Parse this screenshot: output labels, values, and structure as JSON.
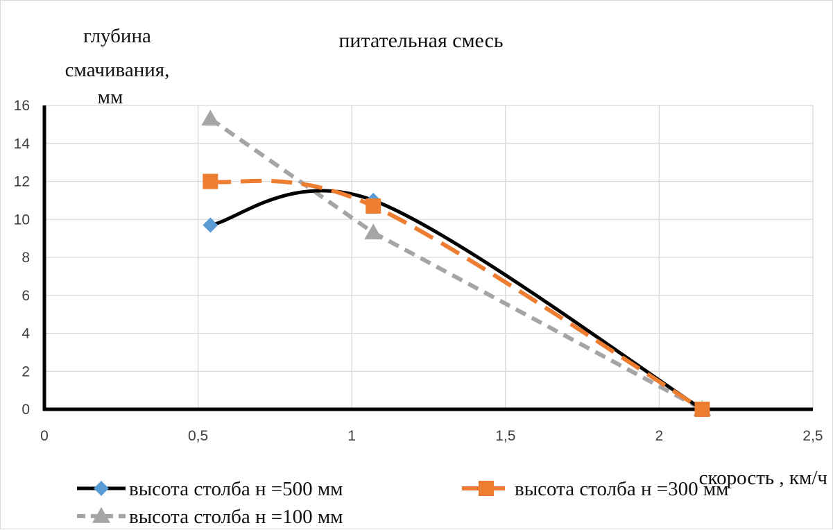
{
  "chart_data": {
    "type": "line",
    "title": "питательная смесь",
    "ylabel_lines": [
      "глубина",
      "смачивания,",
      "мм"
    ],
    "xlabel": "скорость , км/ч",
    "xlim": [
      0,
      2.5
    ],
    "ylim": [
      0,
      16
    ],
    "x_ticks": [
      0,
      0.5,
      1,
      1.5,
      2,
      2.5
    ],
    "x_tick_labels": [
      "0",
      "0,5",
      "1",
      "1,5",
      "2",
      "2,5"
    ],
    "y_ticks": [
      0,
      2,
      4,
      6,
      8,
      10,
      12,
      14,
      16
    ],
    "y_tick_labels": [
      "0",
      "2",
      "4",
      "6",
      "8",
      "10",
      "12",
      "14",
      "16"
    ],
    "grid": true,
    "legend_position": "bottom",
    "series": [
      {
        "name": "высота столба н =500  мм",
        "x": [
          0.54,
          1.07,
          2.14
        ],
        "values": [
          9.7,
          11.0,
          0
        ],
        "color": "#000000",
        "marker_color": "#5b9bd5",
        "marker": "diamond",
        "line_style": "solid",
        "smooth": true
      },
      {
        "name": "высота столба н =300  мм",
        "x": [
          0.54,
          1.07,
          2.14
        ],
        "values": [
          12.0,
          10.7,
          0
        ],
        "color": "#ed7d31",
        "marker_color": "#ed7d31",
        "marker": "square",
        "line_style": "long-dash",
        "smooth": true
      },
      {
        "name": "высота столба н =100  мм",
        "x": [
          0.54,
          1.07,
          2.14
        ],
        "values": [
          15.3,
          9.3,
          0
        ],
        "color": "#a5a5a5",
        "marker_color": "#a5a5a5",
        "marker": "triangle",
        "line_style": "dash",
        "smooth": false
      }
    ]
  }
}
